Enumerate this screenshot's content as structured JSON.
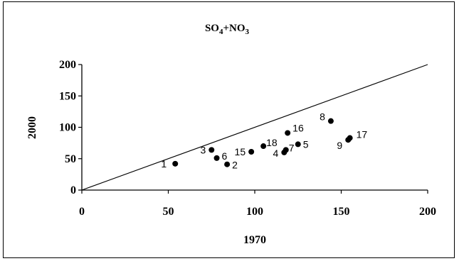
{
  "chart_data": {
    "type": "scatter",
    "title": "SO",
    "title_parts": [
      "SO",
      "4",
      "+NO",
      "3"
    ],
    "xlabel": "1970",
    "ylabel": "2000",
    "xlim": [
      0,
      200
    ],
    "ylim": [
      0,
      200
    ],
    "x_ticks": [
      "0",
      "50",
      "100",
      "150",
      "200"
    ],
    "y_ticks": [
      "0",
      "50",
      "100",
      "150",
      "200"
    ],
    "grid": false,
    "reference_line": {
      "from": [
        0,
        0
      ],
      "to": [
        200,
        200
      ]
    },
    "points": [
      {
        "label": "1",
        "x": 54,
        "y": 42
      },
      {
        "label": "2",
        "x": 84,
        "y": 41
      },
      {
        "label": "3",
        "x": 75,
        "y": 64
      },
      {
        "label": "4",
        "x": 117,
        "y": 60
      },
      {
        "label": "5",
        "x": 125,
        "y": 73
      },
      {
        "label": "6",
        "x": 78,
        "y": 51
      },
      {
        "label": "7",
        "x": 118,
        "y": 64
      },
      {
        "label": "8",
        "x": 144,
        "y": 110
      },
      {
        "label": "9",
        "x": 154,
        "y": 80
      },
      {
        "label": "15",
        "x": 98,
        "y": 61
      },
      {
        "label": "16",
        "x": 119,
        "y": 91
      },
      {
        "label": "17",
        "x": 155,
        "y": 83
      },
      {
        "label": "18",
        "x": 105,
        "y": 70
      }
    ],
    "colors": {
      "point": "#000000",
      "line": "#000000"
    }
  }
}
